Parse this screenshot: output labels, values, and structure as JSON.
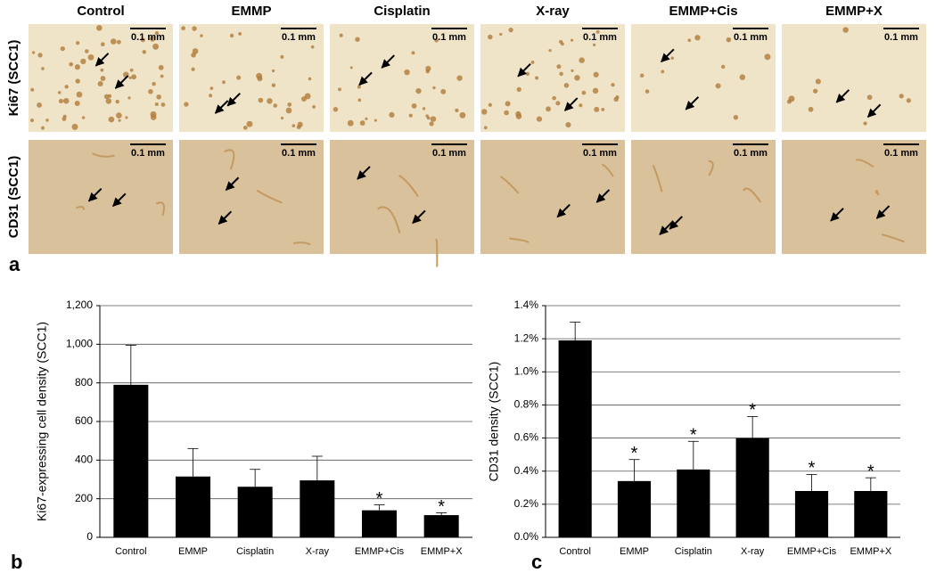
{
  "panel_a": {
    "columns": [
      "Control",
      "EMMP",
      "Cisplatin",
      "X-ray",
      "EMMP+Cis",
      "EMMP+X"
    ],
    "rows": [
      "Ki67 (SCC1)",
      "CD31 (SCC1)"
    ],
    "scale_bar": "0.1 mm"
  },
  "panel_labels": [
    "a",
    "b",
    "c"
  ],
  "chart_data": [
    {
      "type": "bar",
      "y_label": "Ki67-expressing cell density (SCC1)",
      "categories": [
        "Control",
        "EMMP",
        "Cisplatin",
        "X-ray",
        "EMMP+Cis",
        "EMMP+X"
      ],
      "values": [
        790,
        315,
        262,
        295,
        140,
        115
      ],
      "errors": [
        205,
        145,
        90,
        125,
        28,
        12
      ],
      "markers": [
        null,
        null,
        null,
        null,
        "*",
        "*"
      ],
      "color": "#000000",
      "grid": true,
      "ylim": [
        0,
        1200
      ],
      "yticks": [
        0,
        200,
        400,
        600,
        800,
        {
          "value": 1000,
          "label": "1,000"
        },
        {
          "value": 1200,
          "label": "1,200"
        }
      ]
    },
    {
      "type": "bar",
      "y_label": "CD31 density (SCC1)",
      "categories": [
        "Control",
        "EMMP",
        "Cisplatin",
        "X-ray",
        "EMMP+Cis",
        "EMMP+X"
      ],
      "values": [
        1.19,
        0.34,
        0.41,
        0.6,
        0.28,
        0.28
      ],
      "errors": [
        0.11,
        0.13,
        0.17,
        0.13,
        0.1,
        0.08
      ],
      "markers": [
        null,
        "*",
        "*",
        "*",
        "*",
        "*"
      ],
      "color": "#000000",
      "grid": true,
      "ylim": [
        0,
        1.4
      ],
      "yticks": [
        {
          "value": 0,
          "label": "0.0%"
        },
        {
          "value": 0.2,
          "label": "0.2%"
        },
        {
          "value": 0.4,
          "label": "0.4%"
        },
        {
          "value": 0.6,
          "label": "0.6%"
        },
        {
          "value": 0.8,
          "label": "0.8%"
        },
        {
          "value": 1.0,
          "label": "1.0%"
        },
        {
          "value": 1.2,
          "label": "1.2%"
        },
        {
          "value": 1.4,
          "label": "1.4%"
        }
      ]
    }
  ]
}
